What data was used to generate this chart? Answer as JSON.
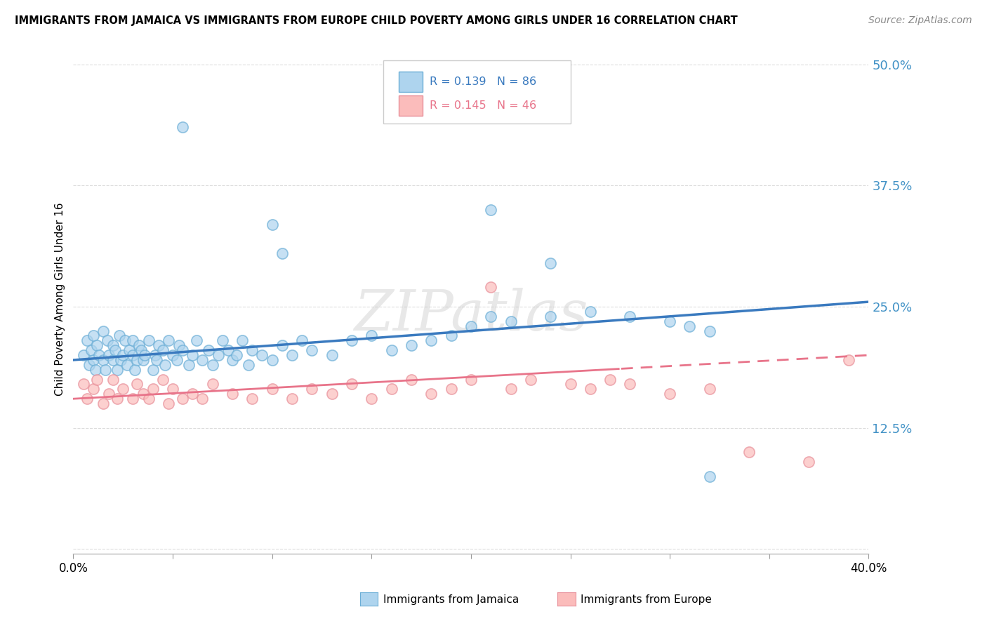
{
  "title": "IMMIGRANTS FROM JAMAICA VS IMMIGRANTS FROM EUROPE CHILD POVERTY AMONG GIRLS UNDER 16 CORRELATION CHART",
  "source": "Source: ZipAtlas.com",
  "ylabel": "Child Poverty Among Girls Under 16",
  "xlim": [
    0.0,
    0.4
  ],
  "ylim": [
    -0.005,
    0.52
  ],
  "series1_label": "Immigrants from Jamaica",
  "series1_R": "0.139",
  "series1_N": "86",
  "series1_face": "#aed4ee",
  "series1_edge": "#6baed6",
  "series2_label": "Immigrants from Europe",
  "series2_R": "0.145",
  "series2_N": "46",
  "series2_face": "#fbbcbb",
  "series2_edge": "#e8909a",
  "trendline1_color": "#3a7abf",
  "trendline2_color": "#e8748a",
  "watermark": "ZIPatlas",
  "background_color": "#ffffff",
  "trendline1_x0": 0.0,
  "trendline1_y0": 0.195,
  "trendline1_x1": 0.4,
  "trendline1_y1": 0.255,
  "trendline2_x0": 0.0,
  "trendline2_y0": 0.155,
  "trendline2_x1": 0.4,
  "trendline2_y1": 0.2,
  "trendline2_dash_start": 0.275
}
